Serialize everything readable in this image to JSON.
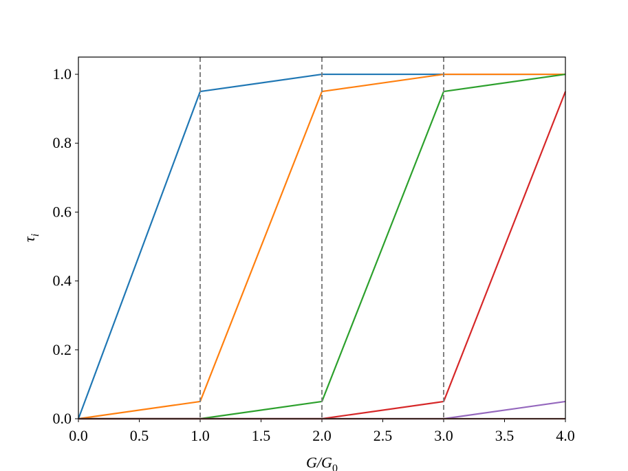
{
  "chart_data": {
    "type": "line",
    "xlabel": [
      "G/G",
      "0"
    ],
    "ylabel": [
      "τ",
      "i"
    ],
    "x": [
      0,
      1,
      2,
      3,
      4
    ],
    "series": [
      {
        "color": "#1f77b4",
        "values": [
          0,
          0.95,
          1,
          1,
          1
        ]
      },
      {
        "color": "#ff7f0e",
        "values": [
          0,
          0.05,
          0.95,
          1,
          1
        ]
      },
      {
        "color": "#2ca02c",
        "values": [
          0,
          0,
          0.05,
          0.95,
          1
        ]
      },
      {
        "color": "#d62728",
        "values": [
          0,
          0,
          0,
          0.05,
          0.95
        ]
      },
      {
        "color": "#9467bd",
        "values": [
          0,
          0,
          0,
          0,
          0.05
        ]
      },
      {
        "color": "#8c564b",
        "values": [
          0,
          0,
          0,
          0,
          0
        ]
      }
    ],
    "vlines": [
      1,
      2,
      3
    ],
    "vline_color": "#808080",
    "xlim": [
      0,
      4
    ],
    "ylim": [
      0,
      1.05
    ],
    "xticks": [
      {
        "value": 0,
        "label": "0.0"
      },
      {
        "value": 0.5,
        "label": "0.5"
      },
      {
        "value": 1,
        "label": "1.0"
      },
      {
        "value": 1.5,
        "label": "1.5"
      },
      {
        "value": 2,
        "label": "2.0"
      },
      {
        "value": 2.5,
        "label": "2.5"
      },
      {
        "value": 3,
        "label": "3.0"
      },
      {
        "value": 3.5,
        "label": "3.5"
      },
      {
        "value": 4,
        "label": "4.0"
      }
    ],
    "yticks": [
      {
        "value": 0,
        "label": "0.0"
      },
      {
        "value": 0.2,
        "label": "0.2"
      },
      {
        "value": 0.4,
        "label": "0.4"
      },
      {
        "value": 0.6,
        "label": "0.6"
      },
      {
        "value": 0.8,
        "label": "0.8"
      },
      {
        "value": 1,
        "label": "1.0"
      }
    ]
  }
}
